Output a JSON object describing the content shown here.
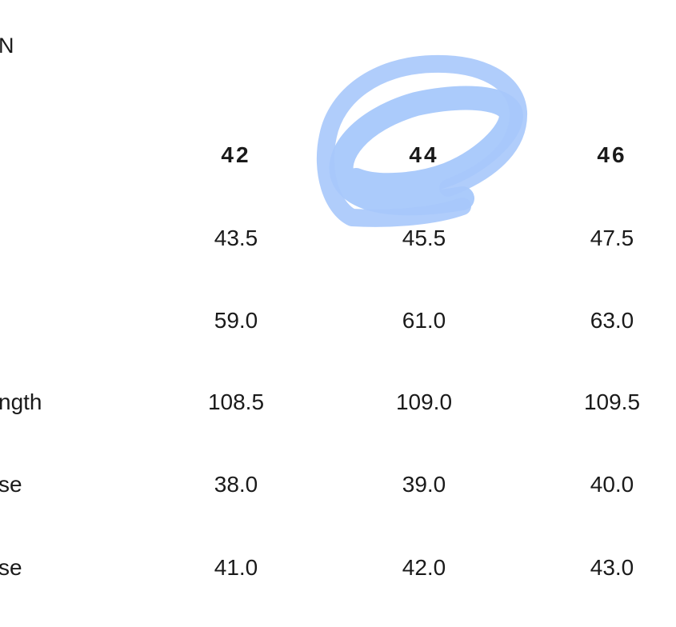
{
  "title": "N",
  "accent_color": "#a7c8fb",
  "table": {
    "columns": [
      "42",
      "44",
      "46"
    ],
    "rows": [
      {
        "label": "",
        "values": [
          "43.5",
          "45.5",
          "47.5"
        ]
      },
      {
        "label": "",
        "values": [
          "59.0",
          "61.0",
          "63.0"
        ]
      },
      {
        "label": "ngth",
        "values": [
          "108.5",
          "109.0",
          "109.5"
        ]
      },
      {
        "label": "se",
        "values": [
          "38.0",
          "39.0",
          "40.0"
        ]
      },
      {
        "label": "se",
        "values": [
          "41.0",
          "42.0",
          "43.0"
        ]
      }
    ]
  },
  "annotation": {
    "type": "hand-drawn-circle",
    "target_column": "44",
    "icon": "highlight-circle-icon"
  }
}
